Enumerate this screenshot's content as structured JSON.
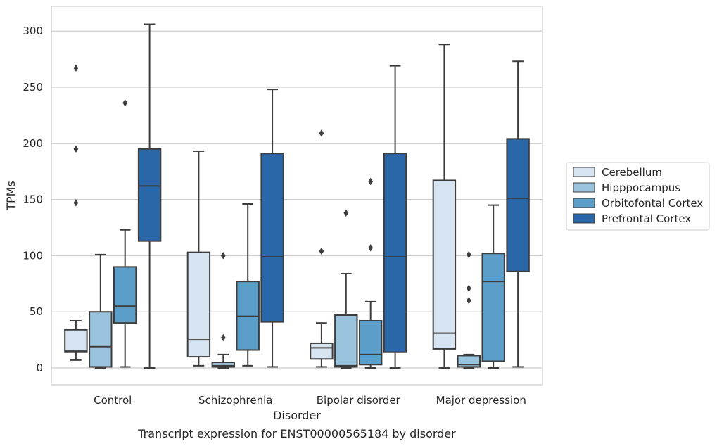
{
  "caption": "Transcript expression for ENST00000565184 by disorder",
  "chart_data": {
    "type": "box",
    "xlabel": "Disorder",
    "ylabel": "TPMs",
    "ylim": [
      -15,
      322
    ],
    "yticks": [
      0,
      50,
      100,
      150,
      200,
      250,
      300
    ],
    "grid": "horizontal",
    "legend_position": "right",
    "categories": [
      "Control",
      "Schizophrenia",
      "Bipolar disorder",
      "Major depression"
    ],
    "series": [
      {
        "name": "Cerebellum",
        "color": "#d6e4f1",
        "boxes": [
          {
            "whisker_low": 7,
            "q1": 14,
            "median": 15,
            "q3": 34,
            "whisker_high": 42,
            "outliers": [
              147,
              195,
              267
            ]
          },
          {
            "whisker_low": 2,
            "q1": 10,
            "median": 25,
            "q3": 103,
            "whisker_high": 193,
            "outliers": []
          },
          {
            "whisker_low": 1,
            "q1": 8,
            "median": 18,
            "q3": 22,
            "whisker_high": 40,
            "outliers": [
              104,
              209
            ]
          },
          {
            "whisker_low": 0,
            "q1": 17,
            "median": 31,
            "q3": 167,
            "whisker_high": 288,
            "outliers": []
          }
        ]
      },
      {
        "name": "Hipppocampus",
        "color": "#9ac4de",
        "boxes": [
          {
            "whisker_low": 0,
            "q1": 1,
            "median": 19,
            "q3": 50,
            "whisker_high": 101,
            "outliers": []
          },
          {
            "whisker_low": 0,
            "q1": 1,
            "median": 2,
            "q3": 5,
            "whisker_high": 12,
            "outliers": [
              27,
              100
            ]
          },
          {
            "whisker_low": 0,
            "q1": 1,
            "median": 2,
            "q3": 47,
            "whisker_high": 84,
            "outliers": [
              138
            ]
          },
          {
            "whisker_low": 0,
            "q1": 1,
            "median": 3,
            "q3": 11,
            "whisker_high": 12,
            "outliers": [
              60,
              71,
              101
            ]
          }
        ]
      },
      {
        "name": "Orbitofontal Cortex",
        "color": "#5a9ec9",
        "boxes": [
          {
            "whisker_low": 1,
            "q1": 40,
            "median": 55,
            "q3": 90,
            "whisker_high": 123,
            "outliers": [
              236
            ]
          },
          {
            "whisker_low": 2,
            "q1": 16,
            "median": 46,
            "q3": 77,
            "whisker_high": 146,
            "outliers": []
          },
          {
            "whisker_low": 0,
            "q1": 3,
            "median": 12,
            "q3": 42,
            "whisker_high": 59,
            "outliers": [
              107,
              166
            ]
          },
          {
            "whisker_low": 0,
            "q1": 6,
            "median": 77,
            "q3": 102,
            "whisker_high": 145,
            "outliers": []
          }
        ]
      },
      {
        "name": "Prefrontal Cortex",
        "color": "#2967a8",
        "boxes": [
          {
            "whisker_low": 0,
            "q1": 113,
            "median": 162,
            "q3": 195,
            "whisker_high": 306,
            "outliers": []
          },
          {
            "whisker_low": 1,
            "q1": 41,
            "median": 99,
            "q3": 191,
            "whisker_high": 248,
            "outliers": []
          },
          {
            "whisker_low": 0,
            "q1": 14,
            "median": 99,
            "q3": 191,
            "whisker_high": 269,
            "outliers": []
          },
          {
            "whisker_low": 1,
            "q1": 86,
            "median": 151,
            "q3": 204,
            "whisker_high": 273,
            "outliers": []
          }
        ]
      }
    ]
  }
}
